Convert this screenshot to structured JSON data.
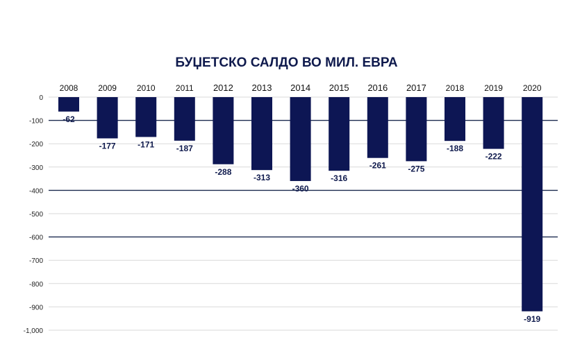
{
  "chart_data": {
    "type": "bar",
    "title": "БУЏЕТСКО САЛДО ВО МИЛ. ЕВРА",
    "categories": [
      "2008",
      "2009",
      "2010",
      "2011",
      "2012",
      "2013",
      "2014",
      "2015",
      "2016",
      "2017",
      "2018",
      "2019",
      "2020"
    ],
    "values": [
      -62,
      -177,
      -171,
      -187,
      -288,
      -313,
      -360,
      -316,
      -261,
      -275,
      -188,
      -222,
      -919
    ],
    "data_labels": [
      "-62",
      "-177",
      "-171",
      "-187",
      "-288",
      "-313",
      "-360",
      "-316",
      "-261",
      "-275",
      "-188",
      "-222",
      "-919"
    ],
    "y_ticks": [
      0,
      -100,
      -200,
      -300,
      -400,
      -500,
      -600,
      -700,
      -800,
      -900,
      -1000
    ],
    "y_tick_labels": [
      "0",
      "-100",
      "-200",
      "-300",
      "-400",
      "-500",
      "-600",
      "-700",
      "-800",
      "-900",
      "-1,000"
    ],
    "ylim": [
      -1000,
      0
    ],
    "xlabel": "",
    "ylabel": "",
    "emphasized_gridlines": [
      -100,
      -400,
      -600
    ],
    "grid": true,
    "legend": "none",
    "colors": {
      "bar": "#0d1654",
      "text": "#0f1a4d",
      "grid": "#d9d9d9",
      "grid_strong": "#1c2a4f"
    }
  }
}
